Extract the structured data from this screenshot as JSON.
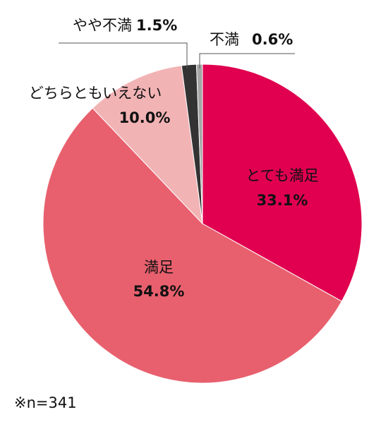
{
  "chart_data": {
    "type": "pie",
    "categories": [
      "とても満足",
      "満足",
      "どちらともいえない",
      "やや不満",
      "不満"
    ],
    "values": [
      33.1,
      54.8,
      10.0,
      1.5,
      0.6
    ],
    "value_labels": [
      "33.1%",
      "54.8%",
      "10.0%",
      "1.5%",
      "0.6%"
    ],
    "colors": [
      "#e0004f",
      "#e8606e",
      "#f2b3b5",
      "#333333",
      "#a6a6a6"
    ],
    "note": "※n=341"
  }
}
